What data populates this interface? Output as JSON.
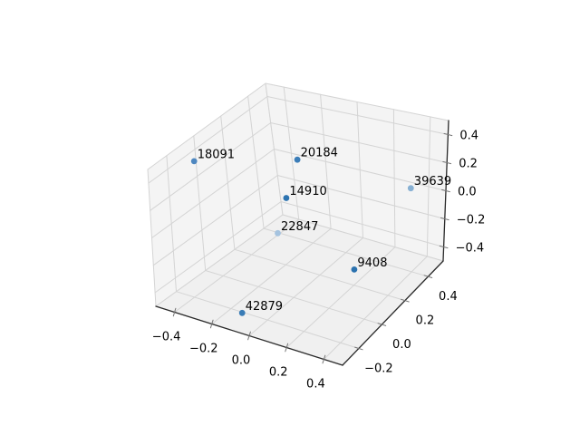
{
  "chart_data": {
    "type": "scatter",
    "projection": "3d",
    "title": "",
    "xlabel": "",
    "ylabel": "",
    "zlabel": "",
    "grid": true,
    "points": [
      {
        "label": "18091",
        "x": -0.43,
        "y": -0.1,
        "z": 0.41,
        "color": "#4e87c0"
      },
      {
        "label": "20184",
        "x": 0.0,
        "y": 0.08,
        "z": 0.43,
        "color": "#3b7db8"
      },
      {
        "label": "14910",
        "x": -0.05,
        "y": 0.05,
        "z": 0.16,
        "color": "#2d74b1"
      },
      {
        "label": "39639",
        "x": 0.34,
        "y": 0.47,
        "z": 0.02,
        "color": "#87b0d3"
      },
      {
        "label": "22847",
        "x": -0.15,
        "y": 0.1,
        "z": -0.17,
        "color": "#a5c3df"
      },
      {
        "label": "9408",
        "x": 0.25,
        "y": 0.14,
        "z": -0.32,
        "color": "#2b72af"
      },
      {
        "label": "42879",
        "x": -0.1,
        "y": -0.25,
        "z": -0.45,
        "color": "#3a7cb6"
      }
    ],
    "axes": {
      "x": {
        "range": [
          -0.5,
          0.5
        ],
        "tick_values": [
          -0.4,
          -0.2,
          0.0,
          0.2,
          0.4
        ],
        "tick_labels": [
          "−0.4",
          "−0.2",
          "0.0",
          "0.2",
          "0.4"
        ]
      },
      "y": {
        "range": [
          -0.34,
          0.53
        ],
        "tick_values": [
          -0.2,
          0.0,
          0.2,
          0.4
        ],
        "tick_labels": [
          "−0.2",
          "0.0",
          "0.2",
          "0.4"
        ]
      },
      "z": {
        "range": [
          -0.5,
          0.5
        ],
        "tick_values": [
          -0.4,
          -0.2,
          0.0,
          0.2,
          0.4
        ],
        "tick_labels": [
          "−0.4",
          "−0.2",
          "0.0",
          "0.2",
          "0.4"
        ]
      }
    },
    "style": {
      "background": "#ffffff",
      "pane_wall_color": "#f4f4f4",
      "pane_floor_color": "#f0f0f0",
      "pane_edge_color": "#d4d4d4",
      "grid_color": "#d4d4d4",
      "spine_color": "#2a2a2a",
      "tick_color": "#767676",
      "text_color": "#000000"
    }
  }
}
